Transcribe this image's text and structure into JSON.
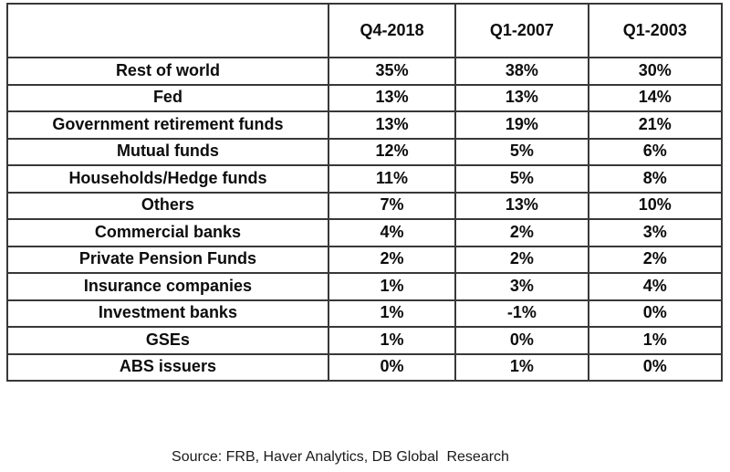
{
  "chart_data": {
    "type": "table",
    "title": "",
    "columns": [
      "",
      "Q4-2018",
      "Q1-2007",
      "Q1-2003"
    ],
    "rows": [
      {
        "label": "Rest of world",
        "values": [
          "35%",
          "38%",
          "30%"
        ]
      },
      {
        "label": "Fed",
        "values": [
          "13%",
          "13%",
          "14%"
        ]
      },
      {
        "label": "Government retirement funds",
        "values": [
          "13%",
          "19%",
          "21%"
        ]
      },
      {
        "label": "Mutual funds",
        "values": [
          "12%",
          "5%",
          "6%"
        ]
      },
      {
        "label": "Households/Hedge funds",
        "values": [
          "11%",
          "5%",
          "8%"
        ]
      },
      {
        "label": "Others",
        "values": [
          "7%",
          "13%",
          "10%"
        ]
      },
      {
        "label": "Commercial banks",
        "values": [
          "4%",
          "2%",
          "3%"
        ]
      },
      {
        "label": "Private Pension Funds",
        "values": [
          "2%",
          "2%",
          "2%"
        ]
      },
      {
        "label": "Insurance companies",
        "values": [
          "1%",
          "3%",
          "4%"
        ]
      },
      {
        "label": "Investment banks",
        "values": [
          "1%",
          "-1%",
          "0%"
        ]
      },
      {
        "label": "GSEs",
        "values": [
          "1%",
          "0%",
          "1%"
        ]
      },
      {
        "label": "ABS issuers",
        "values": [
          "0%",
          "1%",
          "0%"
        ]
      }
    ],
    "source": "Source: FRB, Haver Analytics, DB Global  Research",
    "layout": {
      "grid": "full-borders",
      "header_alignment": "center",
      "cell_alignment": "center",
      "border_color": "#383838",
      "text_color": "#0c0c0c"
    }
  }
}
